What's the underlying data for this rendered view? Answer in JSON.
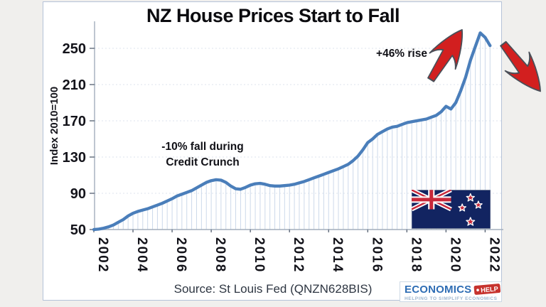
{
  "chart": {
    "title": "NZ House Prices Start to Fall",
    "y_axis_title": "Index 2010=100",
    "annotations": {
      "credit_crunch_line1": "-10% fall during",
      "credit_crunch_line2": "Credit Crunch",
      "rise": "+46% rise"
    },
    "source": "Source: St Louis Fed (QNZN628BIS)",
    "colors": {
      "line": "#4a7eba",
      "droplines": "#ccd9ea",
      "gridlines": "#dde3ec",
      "axis": "#a3adbc",
      "tick_marks": "#5f6a7a",
      "tick_text": "#13131a",
      "arrow_fill": "#d21f1f",
      "arrow_stroke": "#4a4f58"
    }
  },
  "chart_data": {
    "type": "line",
    "title": "NZ House Prices Start to Fall",
    "xlabel": "",
    "ylabel": "Index 2010=100",
    "x_start_year": 2002,
    "x_frequency": "quarterly",
    "x_tick_labels": [
      "2002",
      "2004",
      "2006",
      "2008",
      "2010",
      "2012",
      "2014",
      "2016",
      "2018",
      "2020",
      "2022"
    ],
    "y_ticks": [
      50,
      90,
      130,
      170,
      210,
      250
    ],
    "ylim": [
      50,
      275
    ],
    "grid": true,
    "legend": "none",
    "series": [
      {
        "name": "NZ house price index (2010=100)",
        "values": [
          50,
          50.5,
          51.5,
          53,
          55,
          58,
          61,
          65,
          68,
          70,
          71.5,
          73,
          75,
          77,
          79,
          81.5,
          84,
          87,
          89,
          91,
          93,
          96,
          99,
          102,
          104,
          105,
          104.5,
          102,
          98,
          95,
          94.5,
          96.5,
          99,
          100.5,
          101,
          100,
          98.5,
          98,
          98,
          98.5,
          99,
          100,
          101.5,
          103,
          105,
          107,
          109,
          111,
          113,
          115,
          117,
          119.5,
          122,
          126,
          131,
          138,
          146,
          150,
          155,
          158,
          161,
          163,
          164,
          166,
          168,
          169,
          170,
          171,
          172,
          174,
          176,
          180,
          186,
          183,
          190,
          203,
          218,
          237,
          252,
          267,
          262,
          253
        ]
      }
    ],
    "annotations": [
      {
        "text": "-10% fall during Credit Crunch",
        "refers_to": "2008-2009 dip"
      },
      {
        "text": "+46% rise",
        "refers_to": "2020-2022 surge"
      }
    ]
  },
  "logo": {
    "brand": "ECONOMICS",
    "tag": "HELP",
    "tagline": "HELPING TO SIMPLIFY ECONOMICS"
  }
}
